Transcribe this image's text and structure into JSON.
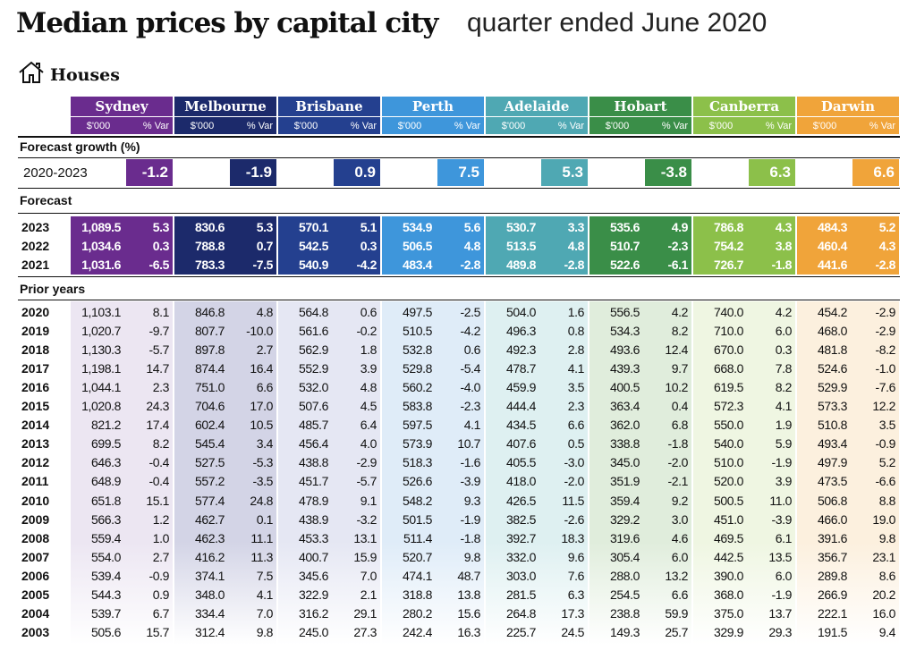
{
  "header": {
    "title": "Median prices by capital city",
    "subtitle": "quarter ended June 2020"
  },
  "section": "Houses",
  "column_labels": [
    "$'000",
    "% Var"
  ],
  "cities": [
    {
      "name": "Sydney",
      "color": "#6a2c8e",
      "tint": "#ece6f2"
    },
    {
      "name": "Melbourne",
      "color": "#1c2a6b",
      "tint": "#d3d4e6"
    },
    {
      "name": "Brisbane",
      "color": "#24408f",
      "tint": "#e5e7f3"
    },
    {
      "name": "Perth",
      "color": "#3e96db",
      "tint": "#dfecf8"
    },
    {
      "name": "Adelaide",
      "color": "#4fa8b3",
      "tint": "#def0f1"
    },
    {
      "name": "Hobart",
      "color": "#3a8e48",
      "tint": "#e0eddc"
    },
    {
      "name": "Canberra",
      "color": "#8cc04a",
      "tint": "#eff6e2"
    },
    {
      "name": "Darwin",
      "color": "#f0a43a",
      "tint": "#fcf0de"
    }
  ],
  "forecast_growth": {
    "title": "Forecast growth (%)",
    "label": "2020-2023",
    "values": [
      "-1.2",
      "-1.9",
      "0.9",
      "7.5",
      "5.3",
      "-3.8",
      "6.3",
      "6.6"
    ]
  },
  "forecast": {
    "title": "Forecast",
    "rows": [
      [
        "2023",
        "1,089.5",
        "5.3",
        "830.6",
        "5.3",
        "570.1",
        "5.1",
        "534.9",
        "5.6",
        "530.7",
        "3.3",
        "535.6",
        "4.9",
        "786.8",
        "4.3",
        "484.3",
        "5.2"
      ],
      [
        "2022",
        "1,034.6",
        "0.3",
        "788.8",
        "0.7",
        "542.5",
        "0.3",
        "506.5",
        "4.8",
        "513.5",
        "4.8",
        "510.7",
        "-2.3",
        "754.2",
        "3.8",
        "460.4",
        "4.3"
      ],
      [
        "2021",
        "1,031.6",
        "-6.5",
        "783.3",
        "-7.5",
        "540.9",
        "-4.2",
        "483.4",
        "-2.8",
        "489.8",
        "-2.8",
        "522.6",
        "-6.1",
        "726.7",
        "-1.8",
        "441.6",
        "-2.8"
      ]
    ]
  },
  "prior": {
    "title": "Prior years",
    "rows": [
      [
        "2020",
        "1,103.1",
        "8.1",
        "846.8",
        "4.8",
        "564.8",
        "0.6",
        "497.5",
        "-2.5",
        "504.0",
        "1.6",
        "556.5",
        "4.2",
        "740.0",
        "4.2",
        "454.2",
        "-2.9"
      ],
      [
        "2019",
        "1,020.7",
        "-9.7",
        "807.7",
        "-10.0",
        "561.6",
        "-0.2",
        "510.5",
        "-4.2",
        "496.3",
        "0.8",
        "534.3",
        "8.2",
        "710.0",
        "6.0",
        "468.0",
        "-2.9"
      ],
      [
        "2018",
        "1,130.3",
        "-5.7",
        "897.8",
        "2.7",
        "562.9",
        "1.8",
        "532.8",
        "0.6",
        "492.3",
        "2.8",
        "493.6",
        "12.4",
        "670.0",
        "0.3",
        "481.8",
        "-8.2"
      ],
      [
        "2017",
        "1,198.1",
        "14.7",
        "874.4",
        "16.4",
        "552.9",
        "3.9",
        "529.8",
        "-5.4",
        "478.7",
        "4.1",
        "439.3",
        "9.7",
        "668.0",
        "7.8",
        "524.6",
        "-1.0"
      ],
      [
        "2016",
        "1,044.1",
        "2.3",
        "751.0",
        "6.6",
        "532.0",
        "4.8",
        "560.2",
        "-4.0",
        "459.9",
        "3.5",
        "400.5",
        "10.2",
        "619.5",
        "8.2",
        "529.9",
        "-7.6"
      ],
      [
        "2015",
        "1,020.8",
        "24.3",
        "704.6",
        "17.0",
        "507.6",
        "4.5",
        "583.8",
        "-2.3",
        "444.4",
        "2.3",
        "363.4",
        "0.4",
        "572.3",
        "4.1",
        "573.3",
        "12.2"
      ],
      [
        "2014",
        "821.2",
        "17.4",
        "602.4",
        "10.5",
        "485.7",
        "6.4",
        "597.5",
        "4.1",
        "434.5",
        "6.6",
        "362.0",
        "6.8",
        "550.0",
        "1.9",
        "510.8",
        "3.5"
      ],
      [
        "2013",
        "699.5",
        "8.2",
        "545.4",
        "3.4",
        "456.4",
        "4.0",
        "573.9",
        "10.7",
        "407.6",
        "0.5",
        "338.8",
        "-1.8",
        "540.0",
        "5.9",
        "493.4",
        "-0.9"
      ],
      [
        "2012",
        "646.3",
        "-0.4",
        "527.5",
        "-5.3",
        "438.8",
        "-2.9",
        "518.3",
        "-1.6",
        "405.5",
        "-3.0",
        "345.0",
        "-2.0",
        "510.0",
        "-1.9",
        "497.9",
        "5.2"
      ],
      [
        "2011",
        "648.9",
        "-0.4",
        "557.2",
        "-3.5",
        "451.7",
        "-5.7",
        "526.6",
        "-3.9",
        "418.0",
        "-2.0",
        "351.9",
        "-2.1",
        "520.0",
        "3.9",
        "473.5",
        "-6.6"
      ],
      [
        "2010",
        "651.8",
        "15.1",
        "577.4",
        "24.8",
        "478.9",
        "9.1",
        "548.2",
        "9.3",
        "426.5",
        "11.5",
        "359.4",
        "9.2",
        "500.5",
        "11.0",
        "506.8",
        "8.8"
      ],
      [
        "2009",
        "566.3",
        "1.2",
        "462.7",
        "0.1",
        "438.9",
        "-3.2",
        "501.5",
        "-1.9",
        "382.5",
        "-2.6",
        "329.2",
        "3.0",
        "451.0",
        "-3.9",
        "466.0",
        "19.0"
      ],
      [
        "2008",
        "559.4",
        "1.0",
        "462.3",
        "11.1",
        "453.3",
        "13.1",
        "511.4",
        "-1.8",
        "392.7",
        "18.3",
        "319.6",
        "4.6",
        "469.5",
        "6.1",
        "391.6",
        "9.8"
      ],
      [
        "2007",
        "554.0",
        "2.7",
        "416.2",
        "11.3",
        "400.7",
        "15.9",
        "520.7",
        "9.8",
        "332.0",
        "9.6",
        "305.4",
        "6.0",
        "442.5",
        "13.5",
        "356.7",
        "23.1"
      ],
      [
        "2006",
        "539.4",
        "-0.9",
        "374.1",
        "7.5",
        "345.6",
        "7.0",
        "474.1",
        "48.7",
        "303.0",
        "7.6",
        "288.0",
        "13.2",
        "390.0",
        "6.0",
        "289.8",
        "8.6"
      ],
      [
        "2005",
        "544.3",
        "0.9",
        "348.0",
        "4.1",
        "322.9",
        "2.1",
        "318.8",
        "13.8",
        "281.5",
        "6.3",
        "254.5",
        "6.6",
        "368.0",
        "-1.9",
        "266.9",
        "20.2"
      ],
      [
        "2004",
        "539.7",
        "6.7",
        "334.4",
        "7.0",
        "316.2",
        "29.1",
        "280.2",
        "15.6",
        "264.8",
        "17.3",
        "238.8",
        "59.9",
        "375.0",
        "13.7",
        "222.1",
        "16.0"
      ],
      [
        "2003",
        "505.6",
        "15.7",
        "312.4",
        "9.8",
        "245.0",
        "27.3",
        "242.4",
        "16.3",
        "225.7",
        "24.5",
        "149.3",
        "25.7",
        "329.9",
        "29.3",
        "191.5",
        "9.4"
      ]
    ]
  }
}
